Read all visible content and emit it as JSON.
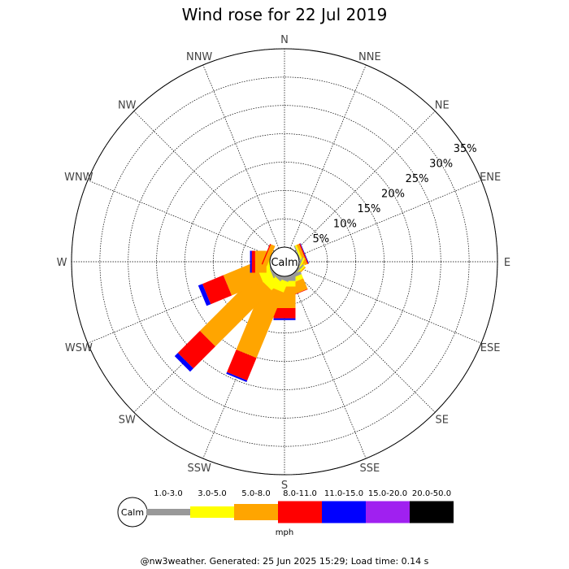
{
  "chart_data": {
    "type": "windrose",
    "title": "Wind rose for 22 Jul 2019",
    "directions": [
      "N",
      "NNE",
      "NE",
      "ENE",
      "E",
      "ESE",
      "SE",
      "SSE",
      "S",
      "SSW",
      "SW",
      "WSW",
      "W",
      "WNW",
      "NW",
      "NNW"
    ],
    "radial_ticks": [
      "5%",
      "10%",
      "15%",
      "20%",
      "25%",
      "30%",
      "35%"
    ],
    "radial_tick_values": [
      5,
      10,
      15,
      20,
      25,
      30,
      35
    ],
    "rmax": 35,
    "calm_label": "Calm",
    "unit_label": "mph",
    "speed_bins": [
      {
        "label": "1.0-3.0",
        "color": "#999999"
      },
      {
        "label": "3.0-5.0",
        "color": "#ffff00"
      },
      {
        "label": "5.0-8.0",
        "color": "#ffa500"
      },
      {
        "label": "8.0-11.0",
        "color": "#ff0000"
      },
      {
        "label": "11.0-15.0",
        "color": "#0000ff"
      },
      {
        "label": "15.0-20.0",
        "color": "#a020f0"
      },
      {
        "label": "20.0-50.0",
        "color": "#000000"
      }
    ],
    "series": [
      {
        "values": [
          0,
          0,
          0,
          0.2,
          0,
          0.2,
          0.3,
          0.6,
          0.8,
          0.5,
          0.4,
          0.3,
          0,
          0,
          0,
          0
        ]
      },
      {
        "values": [
          0,
          0,
          0,
          0.3,
          0,
          0.3,
          0.3,
          0.8,
          1.0,
          2.0,
          2.2,
          2.0,
          0.6,
          0,
          0,
          0
        ]
      },
      {
        "values": [
          0,
          0,
          0,
          0.5,
          0,
          0.2,
          0.2,
          2.0,
          3.8,
          12.5,
          14.0,
          6.0,
          2.0,
          0.8,
          0,
          0
        ]
      },
      {
        "values": [
          0,
          0,
          0,
          0.2,
          0,
          0,
          0,
          0.1,
          1.8,
          4.3,
          5.5,
          4.0,
          0.6,
          0.2,
          0,
          0
        ]
      },
      {
        "values": [
          0,
          0,
          0,
          0.1,
          0,
          0,
          0,
          0,
          0.3,
          0.3,
          0.8,
          0.8,
          0.3,
          0,
          0,
          0
        ]
      },
      {
        "values": [
          0,
          0,
          0,
          0,
          0,
          0,
          0,
          0,
          0,
          0,
          0,
          0,
          0,
          0,
          0,
          0
        ]
      },
      {
        "values": [
          0,
          0,
          0,
          0,
          0,
          0,
          0,
          0,
          0,
          0,
          0,
          0,
          0,
          0,
          0,
          0
        ]
      }
    ]
  },
  "footer": "@nw3weather. Generated: 25 Jun 2025 15:29; Load time: 0.14 s"
}
